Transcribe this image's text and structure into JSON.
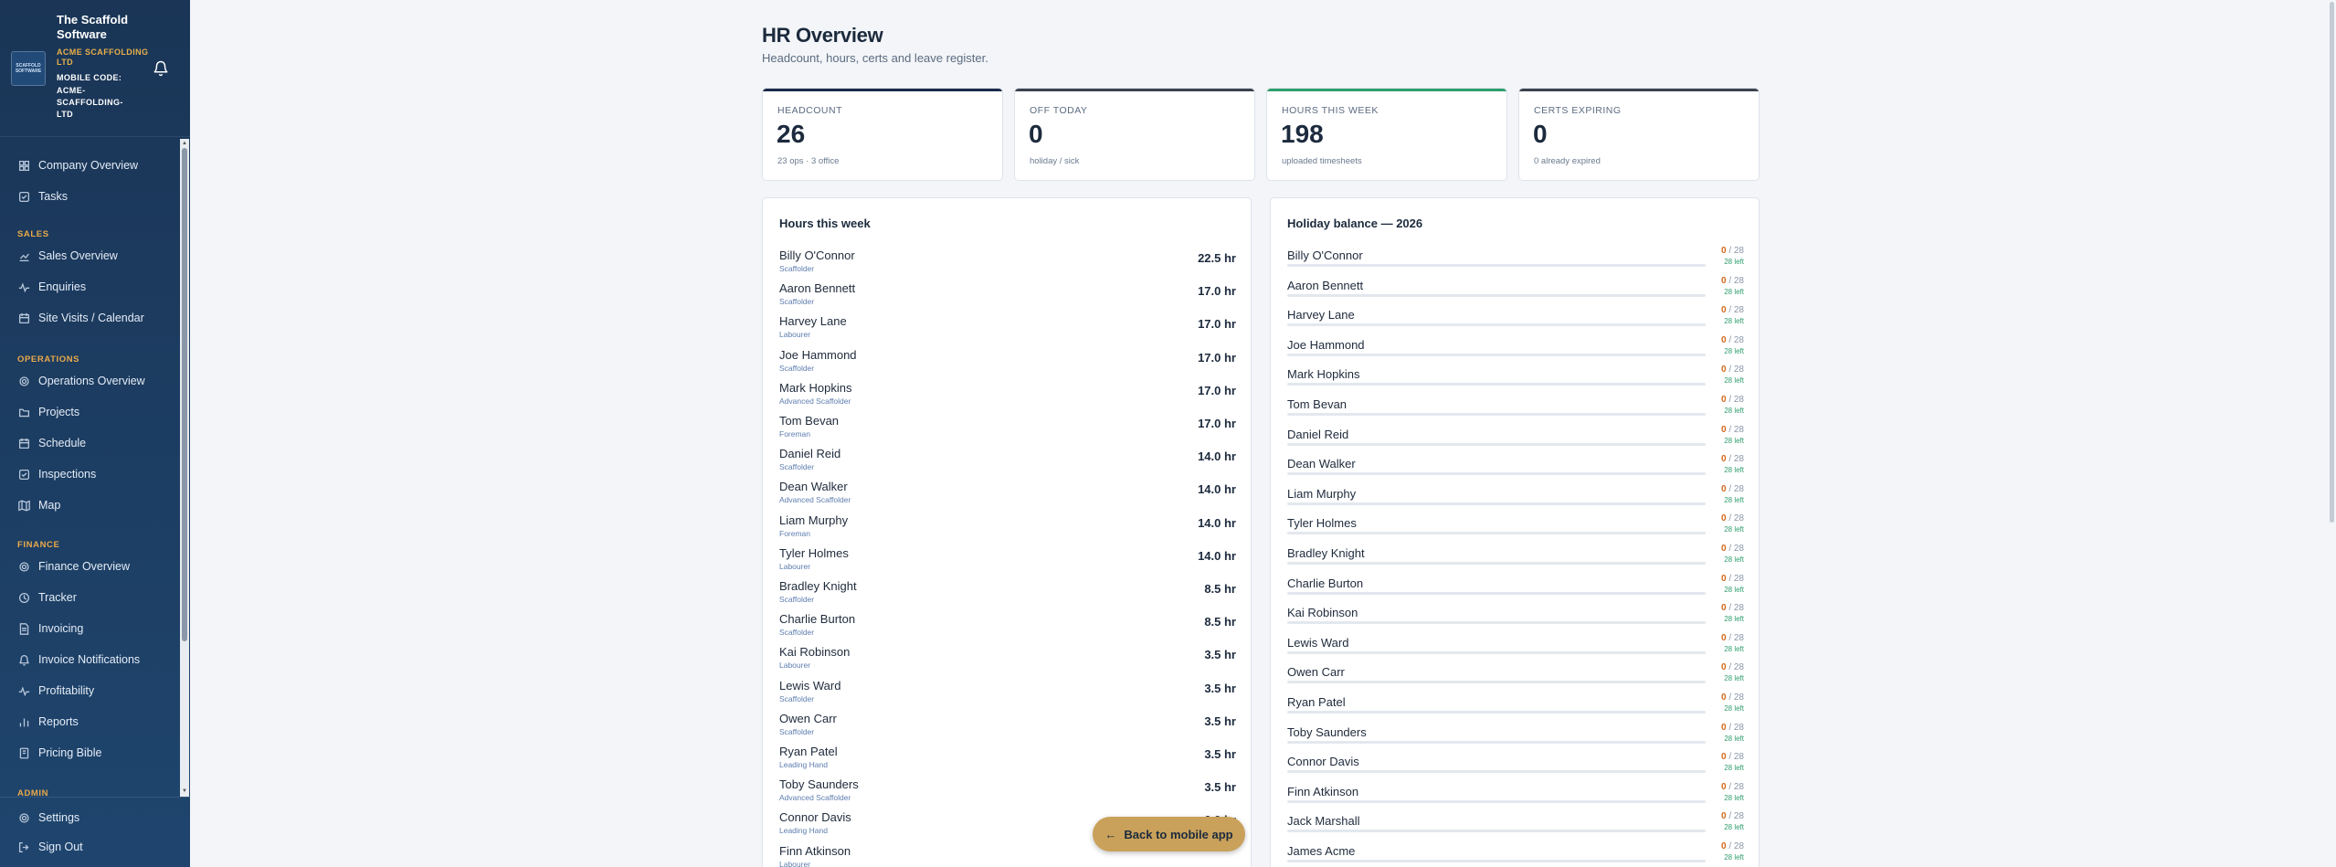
{
  "sidebar": {
    "brand": {
      "name": "The Scaffold Software",
      "company": "ACME SCAFFOLDING LTD",
      "mobile_code_label": "MOBILE CODE:",
      "mobile_code": "ACME-SCAFFOLDING-LTD",
      "logo_text": "SCAFFOLD SOFTWARE"
    },
    "items": [
      {
        "label": "Company Overview",
        "icon": "grid-icon"
      },
      {
        "label": "Tasks",
        "icon": "checkbox-icon"
      }
    ],
    "sections": {
      "sales": "SALES",
      "operations": "OPERATIONS",
      "finance": "FINANCE",
      "admin": "ADMIN"
    },
    "sales_items": [
      {
        "label": "Sales Overview",
        "icon": "chart-icon"
      },
      {
        "label": "Enquiries",
        "icon": "activity-icon"
      },
      {
        "label": "Site Visits / Calendar",
        "icon": "calendar-icon"
      }
    ],
    "operations_items": [
      {
        "label": "Operations Overview",
        "icon": "gear-icon"
      },
      {
        "label": "Projects",
        "icon": "folder-icon"
      },
      {
        "label": "Schedule",
        "icon": "calendar-icon"
      },
      {
        "label": "Inspections",
        "icon": "checkbox-icon"
      },
      {
        "label": "Map",
        "icon": "map-icon"
      }
    ],
    "finance_items": [
      {
        "label": "Finance Overview",
        "icon": "gear-icon"
      },
      {
        "label": "Tracker",
        "icon": "clock-icon"
      },
      {
        "label": "Invoicing",
        "icon": "file-icon"
      },
      {
        "label": "Invoice Notifications",
        "icon": "bell-icon"
      },
      {
        "label": "Profitability",
        "icon": "activity-icon"
      },
      {
        "label": "Reports",
        "icon": "bar-chart-icon"
      },
      {
        "label": "Pricing Bible",
        "icon": "book-icon"
      }
    ],
    "bottom": {
      "settings": "Settings",
      "sign_out": "Sign Out"
    }
  },
  "page": {
    "title": "HR Overview",
    "subtitle": "Headcount, hours, certs and leave register."
  },
  "stats": [
    {
      "label": "HEADCOUNT",
      "value": "26",
      "note": "23 ops · 3 office",
      "color": "#1c2a4a"
    },
    {
      "label": "OFF TODAY",
      "value": "0",
      "note": "holiday / sick",
      "color": "#3b4350"
    },
    {
      "label": "HOURS THIS WEEK",
      "value": "198",
      "note": "uploaded timesheets",
      "color": "#2f9e6e"
    },
    {
      "label": "CERTS EXPIRING",
      "value": "0",
      "note": "0 already expired",
      "color": "#3b4350"
    }
  ],
  "hours": {
    "title": "Hours this week",
    "rows": [
      {
        "name": "Billy O'Connor",
        "role": "Scaffolder",
        "hours": "22.5 hr"
      },
      {
        "name": "Aaron Bennett",
        "role": "Scaffolder",
        "hours": "17.0 hr"
      },
      {
        "name": "Harvey Lane",
        "role": "Labourer",
        "hours": "17.0 hr"
      },
      {
        "name": "Joe Hammond",
        "role": "Scaffolder",
        "hours": "17.0 hr"
      },
      {
        "name": "Mark Hopkins",
        "role": "Advanced Scaffolder",
        "hours": "17.0 hr"
      },
      {
        "name": "Tom Bevan",
        "role": "Foreman",
        "hours": "17.0 hr"
      },
      {
        "name": "Daniel Reid",
        "role": "Scaffolder",
        "hours": "14.0 hr"
      },
      {
        "name": "Dean Walker",
        "role": "Advanced Scaffolder",
        "hours": "14.0 hr"
      },
      {
        "name": "Liam Murphy",
        "role": "Foreman",
        "hours": "14.0 hr"
      },
      {
        "name": "Tyler Holmes",
        "role": "Labourer",
        "hours": "14.0 hr"
      },
      {
        "name": "Bradley Knight",
        "role": "Scaffolder",
        "hours": "8.5 hr"
      },
      {
        "name": "Charlie Burton",
        "role": "Scaffolder",
        "hours": "8.5 hr"
      },
      {
        "name": "Kai Robinson",
        "role": "Labourer",
        "hours": "3.5 hr"
      },
      {
        "name": "Lewis Ward",
        "role": "Scaffolder",
        "hours": "3.5 hr"
      },
      {
        "name": "Owen Carr",
        "role": "Scaffolder",
        "hours": "3.5 hr"
      },
      {
        "name": "Ryan Patel",
        "role": "Leading Hand",
        "hours": "3.5 hr"
      },
      {
        "name": "Toby Saunders",
        "role": "Advanced Scaffolder",
        "hours": "3.5 hr"
      },
      {
        "name": "Connor Davis",
        "role": "Leading Hand",
        "hours": "0.0 hr"
      },
      {
        "name": "Finn Atkinson",
        "role": "Labourer",
        "hours": ""
      }
    ]
  },
  "holiday": {
    "title": "Holiday balance — 2026",
    "rows": [
      {
        "name": "Billy O'Connor",
        "used": "0",
        "total": "/ 28",
        "left": "28 left",
        "fraction_used": 0
      },
      {
        "name": "Aaron Bennett",
        "used": "0",
        "total": "/ 28",
        "left": "28 left",
        "fraction_used": 0
      },
      {
        "name": "Harvey Lane",
        "used": "0",
        "total": "/ 28",
        "left": "28 left",
        "fraction_used": 0
      },
      {
        "name": "Joe Hammond",
        "used": "0",
        "total": "/ 28",
        "left": "28 left",
        "fraction_used": 0
      },
      {
        "name": "Mark Hopkins",
        "used": "0",
        "total": "/ 28",
        "left": "28 left",
        "fraction_used": 0
      },
      {
        "name": "Tom Bevan",
        "used": "0",
        "total": "/ 28",
        "left": "28 left",
        "fraction_used": 0
      },
      {
        "name": "Daniel Reid",
        "used": "0",
        "total": "/ 28",
        "left": "28 left",
        "fraction_used": 0
      },
      {
        "name": "Dean Walker",
        "used": "0",
        "total": "/ 28",
        "left": "28 left",
        "fraction_used": 0
      },
      {
        "name": "Liam Murphy",
        "used": "0",
        "total": "/ 28",
        "left": "28 left",
        "fraction_used": 0
      },
      {
        "name": "Tyler Holmes",
        "used": "0",
        "total": "/ 28",
        "left": "28 left",
        "fraction_used": 0
      },
      {
        "name": "Bradley Knight",
        "used": "0",
        "total": "/ 28",
        "left": "28 left",
        "fraction_used": 0
      },
      {
        "name": "Charlie Burton",
        "used": "0",
        "total": "/ 28",
        "left": "28 left",
        "fraction_used": 0
      },
      {
        "name": "Kai Robinson",
        "used": "0",
        "total": "/ 28",
        "left": "28 left",
        "fraction_used": 0
      },
      {
        "name": "Lewis Ward",
        "used": "0",
        "total": "/ 28",
        "left": "28 left",
        "fraction_used": 0
      },
      {
        "name": "Owen Carr",
        "used": "0",
        "total": "/ 28",
        "left": "28 left",
        "fraction_used": 0
      },
      {
        "name": "Ryan Patel",
        "used": "0",
        "total": "/ 28",
        "left": "28 left",
        "fraction_used": 0
      },
      {
        "name": "Toby Saunders",
        "used": "0",
        "total": "/ 28",
        "left": "28 left",
        "fraction_used": 0
      },
      {
        "name": "Connor Davis",
        "used": "0",
        "total": "/ 28",
        "left": "28 left",
        "fraction_used": 0
      },
      {
        "name": "Finn Atkinson",
        "used": "0",
        "total": "/ 28",
        "left": "28 left",
        "fraction_used": 0
      },
      {
        "name": "Jack Marshall",
        "used": "0",
        "total": "/ 28",
        "left": "28 left",
        "fraction_used": 0
      },
      {
        "name": "James Acme",
        "used": "0",
        "total": "/ 28",
        "left": "28 left",
        "fraction_used": 0
      }
    ]
  },
  "back_button": {
    "label": "Back to mobile app",
    "arrow": "←"
  }
}
